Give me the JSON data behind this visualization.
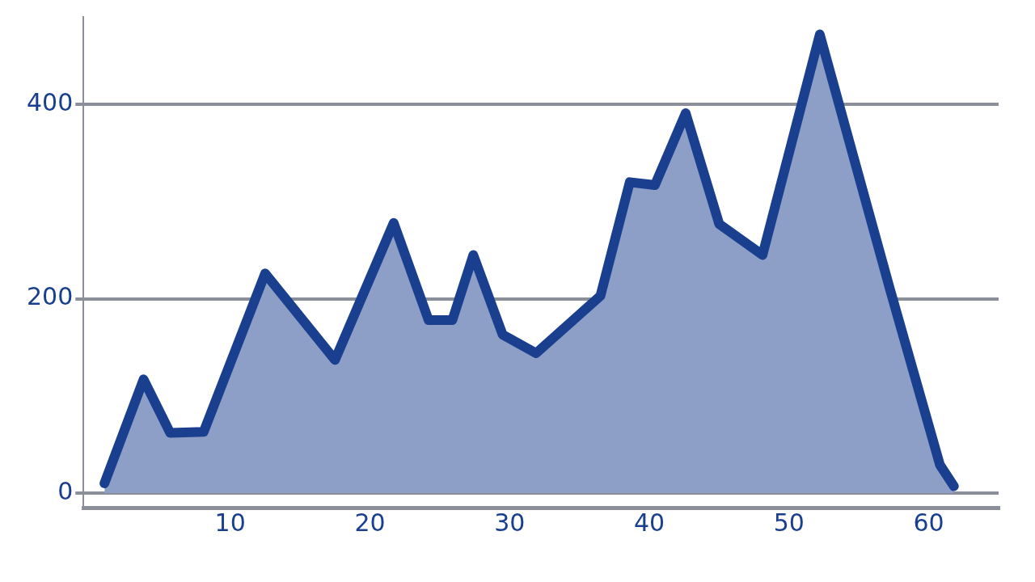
{
  "chart_data": {
    "type": "area",
    "series": [
      {
        "color": "#1a3f8f",
        "x": [
          1,
          3.8,
          5.7,
          8.1,
          12.5,
          17.5,
          21.7,
          24.2,
          25.9,
          27.4,
          29.5,
          31.9,
          36.5,
          38.6,
          40.4,
          42.6,
          45,
          48.1,
          52.2,
          57.2,
          60.8,
          61.8
        ],
        "values": [
          10,
          117,
          62,
          63,
          226,
          137,
          278,
          178,
          178,
          245,
          163,
          144,
          203,
          320,
          317,
          391,
          277,
          245,
          472,
          211,
          29,
          7
        ]
      }
    ],
    "xlim": [
      -0.5,
      65
    ],
    "xticks": [
      10,
      20,
      30,
      40,
      50,
      60
    ],
    "ylim": [
      -15,
      490
    ],
    "yticks": [
      0,
      200,
      400
    ],
    "grid": "y",
    "legend": false
  }
}
